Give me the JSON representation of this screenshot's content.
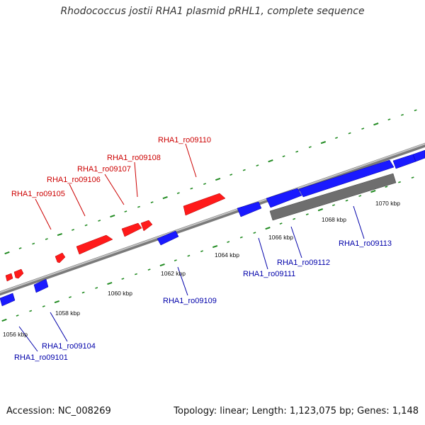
{
  "title": "Rhodococcus jostii RHA1 plasmid pRHL1, complete sequence",
  "footer": {
    "accession": "Accession: NC_008269",
    "summary": "Topology: linear; Length: 1,123,075 bp; Genes: 1,148"
  },
  "colors": {
    "forward": "#ff0000",
    "reverse": "#0000ff",
    "forward_label": "#cc0000",
    "reverse_label": "#0000aa",
    "backbone": "#888888",
    "tick": "#228b22",
    "other_feature": "#666666"
  },
  "scale_labels": [
    "1056 kbp",
    "1058 kbp",
    "1060 kbp",
    "1062 kbp",
    "1064 kbp",
    "1066 kbp",
    "1068 kbp",
    "1070 kbp"
  ],
  "forward_gene_labels": [
    "RHA1_ro09105",
    "RHA1_ro09106",
    "RHA1_ro09107",
    "RHA1_ro09108",
    "RHA1_ro09110"
  ],
  "reverse_gene_labels": [
    "RHA1_ro09101",
    "RHA1_ro09104",
    "RHA1_ro09109",
    "RHA1_ro09111",
    "RHA1_ro09112",
    "RHA1_ro09113"
  ]
}
